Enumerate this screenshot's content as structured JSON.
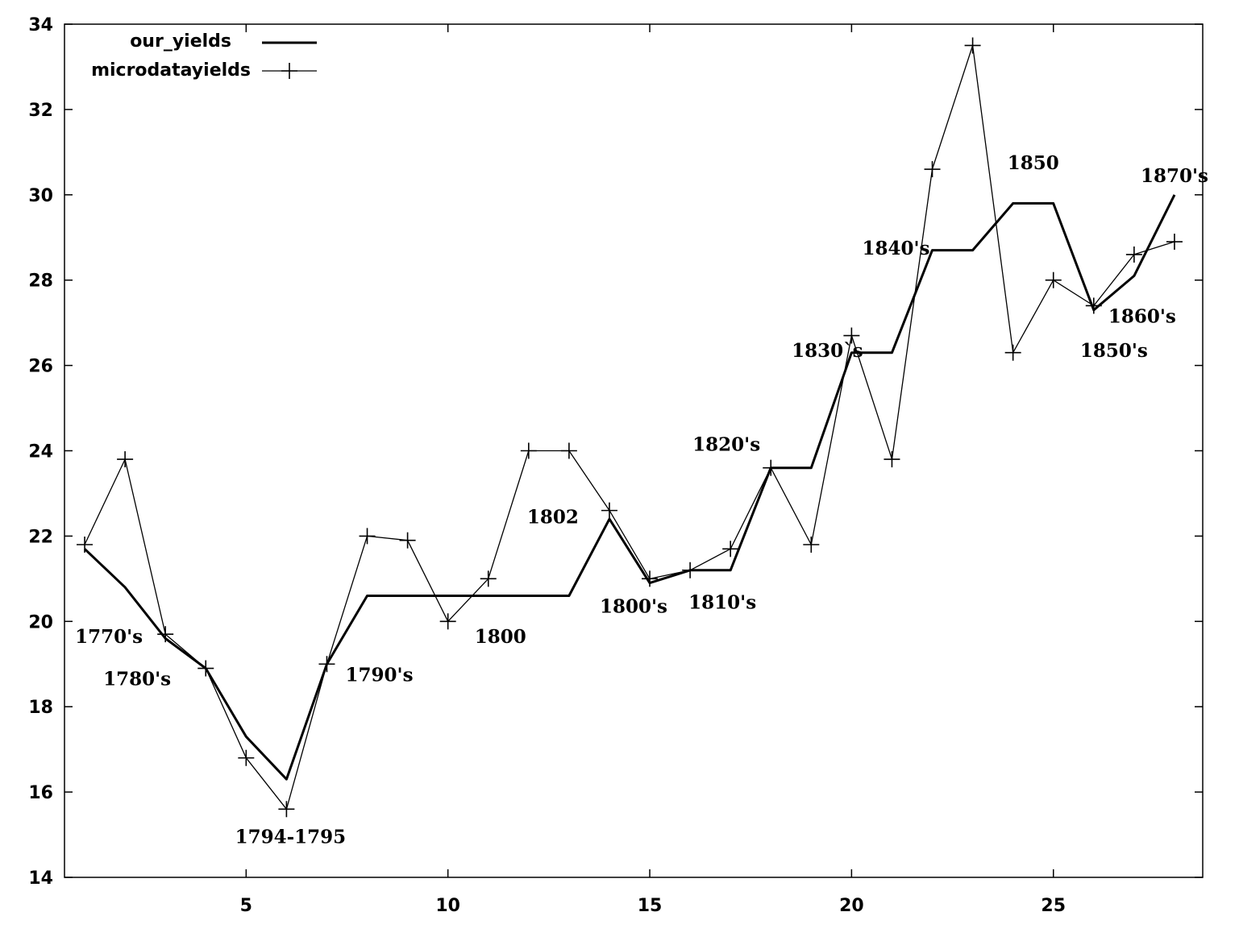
{
  "chart_data": {
    "type": "line",
    "title": "",
    "xlabel": "",
    "ylabel": "",
    "xlim": [
      0.5,
      28.7
    ],
    "ylim": [
      14,
      34
    ],
    "xticks": [
      5,
      10,
      15,
      20,
      25
    ],
    "yticks": [
      14,
      16,
      18,
      20,
      22,
      24,
      26,
      28,
      30,
      32,
      34
    ],
    "grid": false,
    "legend_position": "top-left",
    "series": [
      {
        "name": "our_yields",
        "marker": "none",
        "line": "thick",
        "x": [
          1,
          2,
          3,
          4,
          5,
          6,
          7,
          8,
          9,
          10,
          11,
          12,
          13,
          14,
          15,
          16,
          17,
          18,
          19,
          20,
          21,
          22,
          23,
          24,
          25,
          26,
          27,
          28
        ],
        "y": [
          21.7,
          20.8,
          19.6,
          18.9,
          17.3,
          16.3,
          19.0,
          20.6,
          20.6,
          20.6,
          20.6,
          20.6,
          20.6,
          22.4,
          20.9,
          21.2,
          21.2,
          23.6,
          23.6,
          26.3,
          26.3,
          28.7,
          28.7,
          29.8,
          29.8,
          27.3,
          28.1,
          30.0
        ]
      },
      {
        "name": "microdatayields",
        "marker": "plus",
        "line": "thin",
        "x": [
          1,
          2,
          3,
          4,
          5,
          6,
          7,
          8,
          9,
          10,
          11,
          12,
          13,
          14,
          15,
          16,
          17,
          18,
          19,
          20,
          21,
          22,
          23,
          24,
          25,
          26,
          27,
          28
        ],
        "y": [
          21.8,
          23.8,
          19.7,
          18.9,
          16.8,
          15.6,
          19.0,
          22.0,
          21.9,
          20.0,
          21.0,
          24.0,
          24.0,
          22.6,
          21.0,
          21.2,
          21.7,
          23.6,
          21.8,
          26.7,
          23.8,
          30.6,
          33.5,
          26.3,
          28.0,
          27.4,
          28.6,
          28.9
        ]
      }
    ],
    "annotations": [
      {
        "text": "1770's",
        "x": 1.6,
        "y": 19.5
      },
      {
        "text": "1780's",
        "x": 2.3,
        "y": 18.5
      },
      {
        "text": "1794-1795",
        "x": 6.1,
        "y": 14.8
      },
      {
        "text": "1790's",
        "x": 8.3,
        "y": 18.6
      },
      {
        "text": "1800",
        "x": 11.3,
        "y": 19.5
      },
      {
        "text": "1802",
        "x": 12.6,
        "y": 22.3
      },
      {
        "text": "1800's",
        "x": 14.6,
        "y": 20.2
      },
      {
        "text": "1810's",
        "x": 16.8,
        "y": 20.3
      },
      {
        "text": "1820's",
        "x": 16.9,
        "y": 24.0
      },
      {
        "text": "1830`s",
        "x": 19.4,
        "y": 26.2
      },
      {
        "text": "1840's",
        "x": 21.1,
        "y": 28.6
      },
      {
        "text": "1850",
        "x": 24.5,
        "y": 30.6
      },
      {
        "text": "1850's",
        "x": 26.5,
        "y": 26.2
      },
      {
        "text": "1860's",
        "x": 27.2,
        "y": 27.0
      },
      {
        "text": "1870's",
        "x": 28.0,
        "y": 30.3
      }
    ]
  }
}
